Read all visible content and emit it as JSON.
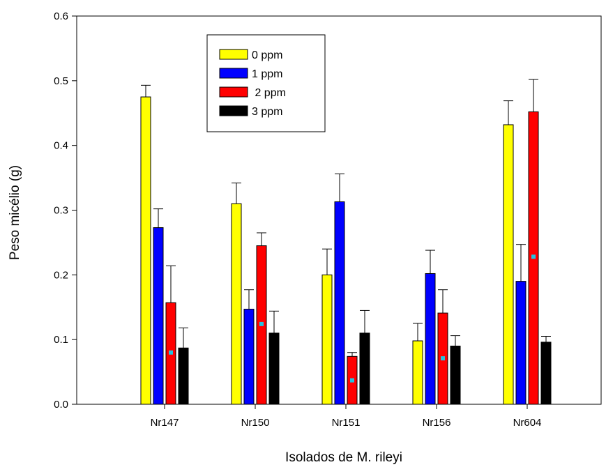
{
  "chart_data": {
    "type": "bar",
    "xlabel": "Isolados de M. rileyi",
    "ylabel": "Peso micélio (g)",
    "ylim": [
      0,
      0.6
    ],
    "yticks": [
      "0.0",
      "0.1",
      "0.2",
      "0.3",
      "0.4",
      "0.5",
      "0.6"
    ],
    "categories": [
      "Nr147",
      "Nr150",
      "Nr151",
      "Nr156",
      "Nr604"
    ],
    "grid": false,
    "legend_position": "top-left",
    "series": [
      {
        "name": "0 ppm",
        "color": "#ffff00",
        "values": [
          0.475,
          0.31,
          0.2,
          0.098,
          0.432
        ],
        "errors": [
          0.018,
          0.032,
          0.04,
          0.027,
          0.037
        ]
      },
      {
        "name": "1 ppm",
        "color": "#0000ff",
        "values": [
          0.273,
          0.147,
          0.313,
          0.202,
          0.19
        ],
        "errors": [
          0.029,
          0.03,
          0.043,
          0.036,
          0.057
        ]
      },
      {
        "name": " 2 ppm",
        "color": "#ff0000",
        "values": [
          0.157,
          0.245,
          0.074,
          0.141,
          0.452
        ],
        "errors": [
          0.057,
          0.02,
          0.006,
          0.036,
          0.05
        ]
      },
      {
        "name": "3 ppm",
        "color": "#000000",
        "values": [
          0.087,
          0.11,
          0.11,
          0.09,
          0.096
        ],
        "errors": [
          0.031,
          0.034,
          0.035,
          0.016,
          0.009
        ]
      }
    ],
    "markers": {
      "color": "#22c4e0",
      "points": [
        {
          "category": "Nr147",
          "series": " 2 ppm",
          "value": 0.08
        },
        {
          "category": "Nr150",
          "series": " 2 ppm",
          "value": 0.124
        },
        {
          "category": "Nr151",
          "series": " 2 ppm",
          "value": 0.037
        },
        {
          "category": "Nr156",
          "series": " 2 ppm",
          "value": 0.071
        },
        {
          "category": "Nr604",
          "series": " 2 ppm",
          "value": 0.228
        }
      ]
    }
  }
}
